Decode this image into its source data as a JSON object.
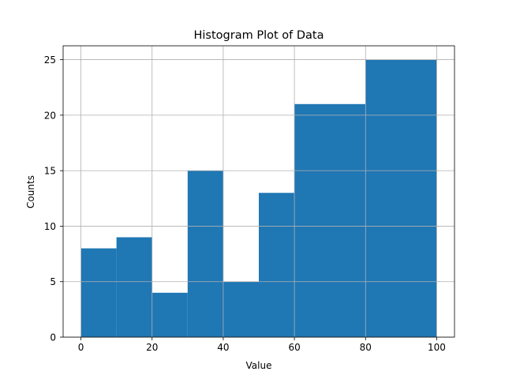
{
  "chart_data": {
    "type": "bar",
    "title": "Histogram Plot of Data",
    "xlabel": "Value",
    "ylabel": "Counts",
    "bins": [
      {
        "start": 0,
        "end": 10,
        "count": 8
      },
      {
        "start": 10,
        "end": 20,
        "count": 9
      },
      {
        "start": 20,
        "end": 30,
        "count": 4
      },
      {
        "start": 30,
        "end": 40,
        "count": 15
      },
      {
        "start": 40,
        "end": 50,
        "count": 5
      },
      {
        "start": 50,
        "end": 60,
        "count": 13
      },
      {
        "start": 60,
        "end": 80,
        "count": 21
      },
      {
        "start": 80,
        "end": 100,
        "count": 25
      }
    ],
    "xlim": [
      -5,
      105
    ],
    "ylim": [
      0,
      26.25
    ],
    "xticks": [
      0,
      20,
      40,
      60,
      80,
      100
    ],
    "yticks": [
      0,
      5,
      10,
      15,
      20,
      25
    ],
    "grid": true,
    "bar_color": "#1f77b4"
  }
}
